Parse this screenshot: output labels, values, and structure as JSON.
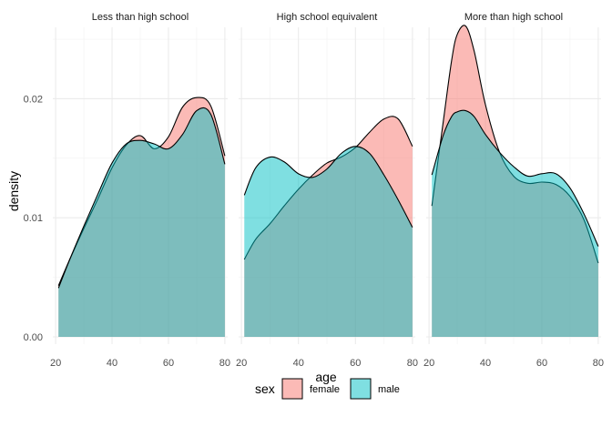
{
  "chart_data": {
    "type": "area",
    "subtype": "density",
    "xlabel": "age",
    "ylabel": "density",
    "xlim": [
      20,
      80
    ],
    "ylim": [
      0,
      0.026
    ],
    "xticks": [
      "20",
      "40",
      "60",
      "80"
    ],
    "yticks": [
      "0.00",
      "0.01",
      "0.02"
    ],
    "ytick_values": [
      0,
      0.01,
      0.02
    ],
    "xtick_values": [
      20,
      40,
      60,
      80
    ],
    "grid": true,
    "legend": {
      "title": "sex",
      "position": "bottom",
      "entries": [
        {
          "label": "female",
          "color": "#F8766D"
        },
        {
          "label": "male",
          "color": "#00BFC4"
        }
      ]
    },
    "panels": [
      {
        "title": "Less than high school",
        "series": [
          {
            "name": "female",
            "color": "#F8766D",
            "x": [
              21,
              25,
              30,
              35,
              40,
              45,
              50,
              55,
              60,
              65,
              70,
              75,
              80
            ],
            "y": [
              0.0043,
              0.0065,
              0.0091,
              0.0116,
              0.0142,
              0.0161,
              0.0169,
              0.0158,
              0.0168,
              0.0193,
              0.0201,
              0.0194,
              0.0152
            ]
          },
          {
            "name": "male",
            "color": "#00BFC4",
            "x": [
              21,
              25,
              30,
              35,
              40,
              45,
              50,
              55,
              60,
              65,
              70,
              75,
              80
            ],
            "y": [
              0.0041,
              0.0065,
              0.0093,
              0.012,
              0.0146,
              0.0162,
              0.0165,
              0.0162,
              0.0158,
              0.017,
              0.019,
              0.0187,
              0.0145
            ]
          }
        ]
      },
      {
        "title": "High school equivalent",
        "series": [
          {
            "name": "female",
            "color": "#F8766D",
            "x": [
              21,
              25,
              30,
              35,
              40,
              45,
              50,
              55,
              60,
              65,
              70,
              75,
              80
            ],
            "y": [
              0.0065,
              0.0082,
              0.0095,
              0.011,
              0.0124,
              0.0136,
              0.0146,
              0.0151,
              0.0159,
              0.0172,
              0.0183,
              0.0183,
              0.016
            ]
          },
          {
            "name": "male",
            "color": "#00BFC4",
            "x": [
              21,
              25,
              30,
              35,
              40,
              45,
              50,
              55,
              60,
              65,
              70,
              75,
              80
            ],
            "y": [
              0.0119,
              0.0142,
              0.0151,
              0.0147,
              0.0137,
              0.0134,
              0.0141,
              0.0154,
              0.016,
              0.0154,
              0.0136,
              0.0115,
              0.0092
            ]
          }
        ]
      },
      {
        "title": "More than high school",
        "series": [
          {
            "name": "female",
            "color": "#F8766D",
            "x": [
              21,
              25,
              28,
              30,
              33,
              36,
              40,
              45,
              50,
              55,
              60,
              65,
              70,
              75,
              80
            ],
            "y": [
              0.011,
              0.018,
              0.0232,
              0.0254,
              0.0261,
              0.024,
              0.0195,
              0.0155,
              0.0135,
              0.0129,
              0.013,
              0.0128,
              0.0118,
              0.0098,
              0.0062
            ]
          },
          {
            "name": "male",
            "color": "#00BFC4",
            "x": [
              21,
              25,
              28,
              30,
              33,
              36,
              40,
              45,
              50,
              55,
              60,
              65,
              70,
              75,
              80
            ],
            "y": [
              0.0136,
              0.0169,
              0.0185,
              0.0189,
              0.019,
              0.0185,
              0.017,
              0.0155,
              0.0143,
              0.0135,
              0.0137,
              0.0137,
              0.0125,
              0.0103,
              0.0076
            ]
          }
        ]
      }
    ]
  }
}
